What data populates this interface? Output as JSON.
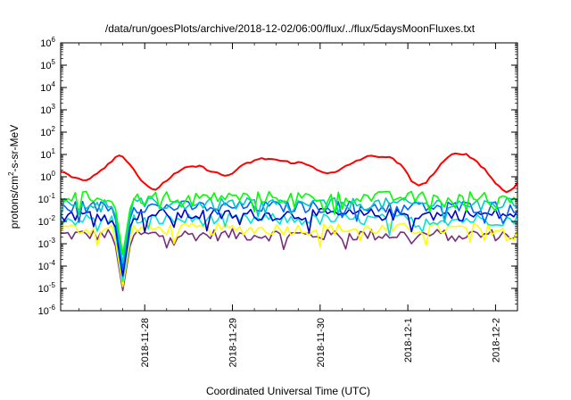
{
  "chart_data": {
    "type": "line",
    "title": "/data/run/goesPlots/archive/2018-12-02/06:00/flux/../flux/5daysMoonFluxes.txt",
    "xlabel": "Coordinated Universal Time (UTC)",
    "ylabel": "protons/cm²-s-sr-MeV",
    "ylabel_parts": {
      "base": "protons/cm",
      "sup": "2",
      "rest": "-s-sr-MeV"
    },
    "y_scale": "log",
    "ylim": [
      1e-06,
      1000000.0
    ],
    "y_ticks": [
      {
        "value": 1000000.0,
        "base": "10",
        "exp": "6"
      },
      {
        "value": 100000.0,
        "base": "10",
        "exp": "5"
      },
      {
        "value": 10000.0,
        "base": "10",
        "exp": "4"
      },
      {
        "value": 1000.0,
        "base": "10",
        "exp": "3"
      },
      {
        "value": 100.0,
        "base": "10",
        "exp": "2"
      },
      {
        "value": 10.0,
        "base": "10",
        "exp": "1"
      },
      {
        "value": 1.0,
        "base": "10",
        "exp": "0"
      },
      {
        "value": 0.1,
        "base": "10",
        "exp": "-1"
      },
      {
        "value": 0.01,
        "base": "10",
        "exp": "-2"
      },
      {
        "value": 0.001,
        "base": "10",
        "exp": "-3"
      },
      {
        "value": 0.0001,
        "base": "10",
        "exp": "-4"
      },
      {
        "value": 1e-05,
        "base": "10",
        "exp": "-5"
      },
      {
        "value": 1e-06,
        "base": "10",
        "exp": "-6"
      }
    ],
    "xlim": [
      "2018-11-27T01:00",
      "2018-12-02T06:00"
    ],
    "x_ticks": [
      {
        "date": "2018-11-28T00:00",
        "label": "2018-11-28"
      },
      {
        "date": "2018-11-29T00:00",
        "label": "2018-11-29"
      },
      {
        "date": "2018-11-30T00:00",
        "label": "2018-11-30"
      },
      {
        "date": "2018-12-01T00:00",
        "label": "2018-12-1"
      },
      {
        "date": "2018-12-02T00:00",
        "label": "2018-12-2"
      }
    ],
    "grid": false,
    "legend": "none",
    "time_step_hours": 1,
    "dropout": {
      "time": "2018-11-27T18:00",
      "min_value": 8e-06
    },
    "series": [
      {
        "color": "#ff0000",
        "base_values": [
          1.8,
          1.4,
          1.0,
          0.9,
          0.8,
          0.7,
          0.9,
          1.2,
          1.8,
          2.6,
          4.0,
          6.5,
          9.0,
          8.0,
          5.0,
          2.5,
          1.2,
          0.6,
          0.35,
          0.25,
          0.3,
          0.45,
          0.7,
          1.0,
          1.4,
          1.9,
          2.4,
          2.8,
          3.0,
          2.8,
          2.4,
          2.0,
          1.6,
          1.3,
          1.1,
          1.2,
          1.6,
          2.3,
          3.2,
          4.2,
          5.0,
          5.8,
          6.3,
          6.5,
          6.2,
          5.6,
          5.0,
          4.6,
          4.5,
          4.4,
          4.1,
          3.6,
          3.0,
          2.4,
          1.9,
          1.6,
          1.4,
          1.5,
          1.9,
          2.6,
          3.5,
          4.6,
          5.8,
          7.0,
          7.8,
          8.3,
          8.5,
          8.2,
          7.5,
          6.2,
          4.5,
          2.8,
          1.4,
          0.7,
          0.45,
          0.4,
          0.6,
          1.0,
          1.8,
          3.2,
          5.5,
          8.5,
          11.0,
          12.0,
          10.5,
          8.0,
          6.0,
          4.0,
          2.4,
          1.3,
          0.7,
          0.4,
          0.25,
          0.2,
          0.3,
          0.6
        ]
      },
      {
        "color": "#00ff00",
        "base_values": [
          0.12
        ]
      },
      {
        "color": "#00c8c8",
        "base_values": [
          0.06
        ]
      },
      {
        "color": "#0064ff",
        "base_values": [
          0.045
        ]
      },
      {
        "color": "#0000cd",
        "base_values": [
          0.02
        ]
      },
      {
        "color": "#00e5d5",
        "base_values": [
          0.012
        ]
      },
      {
        "color": "#ffff00",
        "base_values": [
          0.0045
        ]
      },
      {
        "color": "#7a2e7a",
        "base_values": [
          0.0025
        ]
      }
    ]
  }
}
